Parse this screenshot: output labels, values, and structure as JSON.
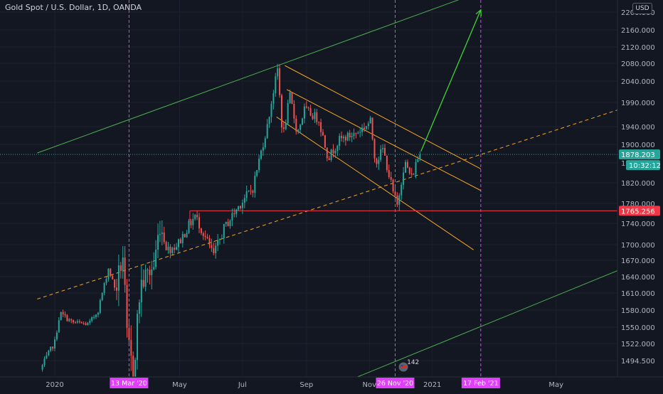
{
  "chart_title": "Gold Spot / U.S. Dollar, 1D, OANDA",
  "currency_label": "USD",
  "colors": {
    "background": "#131722",
    "up_candle": "#26a69a",
    "down_candle": "#ef5350",
    "green_channel": "#4caf50",
    "orange_channel": "#f5a623",
    "support_line": "#f23645",
    "event_line": "#e040fb",
    "arrow": "#3fd435",
    "axis_text": "#b2b5be"
  },
  "chart_data": {
    "type": "candlestick",
    "symbol": "XAUUSD",
    "timeframe": "1D",
    "y_axis_ticks": [
      2200,
      2160,
      2120,
      2080,
      2040,
      1990,
      1940,
      1900,
      1860,
      1820,
      1780,
      1740,
      1700,
      1670,
      1640,
      1610,
      1580,
      1550,
      1522,
      1494.5
    ],
    "y_axis_tick_labels": [
      "2200.000",
      "2160.000",
      "2120.000",
      "2080.000",
      "2040.000",
      "1990.000",
      "1940.000",
      "1900.000",
      "1860.000",
      "1820.000",
      "1780.000",
      "1740.000",
      "1700.000",
      "1670.000",
      "1640.000",
      "1610.000",
      "1580.000",
      "1550.000",
      "1522.000",
      "1494.500"
    ],
    "x_axis_labels": [
      "2020",
      "May",
      "Jul",
      "Sep",
      "Nov",
      "2021",
      "May"
    ],
    "price_badges": [
      {
        "label": "1878.203",
        "value": 1878.203,
        "color": "#26a69a"
      },
      {
        "label": "10:32:12",
        "color": "#26a69a"
      },
      {
        "label": "1765.256",
        "value": 1765.256,
        "color": "#f23645"
      }
    ],
    "date_markers": [
      {
        "label": "13 Mar '20",
        "date": "2020-03-13"
      },
      {
        "label": "26 Nov '20",
        "date": "2020-11-26"
      },
      {
        "label": "17 Feb '21",
        "date": "2021-02-17"
      }
    ],
    "support_level": 1765.256,
    "last_price": 1878.203,
    "event_badge": "142",
    "price_path": [
      [
        "2019-12-20",
        1480
      ],
      [
        "2020-01-03",
        1525
      ],
      [
        "2020-01-08",
        1575
      ],
      [
        "2020-01-20",
        1558
      ],
      [
        "2020-02-05",
        1555
      ],
      [
        "2020-02-14",
        1580
      ],
      [
        "2020-02-24",
        1655
      ],
      [
        "2020-03-02",
        1615
      ],
      [
        "2020-03-09",
        1680
      ],
      [
        "2020-03-13",
        1530
      ],
      [
        "2020-03-19",
        1472
      ],
      [
        "2020-03-26",
        1625
      ],
      [
        "2020-04-08",
        1660
      ],
      [
        "2020-04-14",
        1740
      ],
      [
        "2020-04-21",
        1690
      ],
      [
        "2020-05-01",
        1700
      ],
      [
        "2020-05-18",
        1755
      ],
      [
        "2020-06-05",
        1680
      ],
      [
        "2020-06-15",
        1730
      ],
      [
        "2020-07-01",
        1780
      ],
      [
        "2020-07-13",
        1810
      ],
      [
        "2020-07-27",
        1940
      ],
      [
        "2020-08-06",
        2067
      ],
      [
        "2020-08-11",
        1915
      ],
      [
        "2020-08-18",
        2005
      ],
      [
        "2020-08-25",
        1925
      ],
      [
        "2020-09-01",
        1975
      ],
      [
        "2020-09-15",
        1955
      ],
      [
        "2020-09-24",
        1870
      ],
      [
        "2020-10-05",
        1910
      ],
      [
        "2020-10-21",
        1925
      ],
      [
        "2020-11-04",
        1950
      ],
      [
        "2020-11-09",
        1860
      ],
      [
        "2020-11-16",
        1890
      ],
      [
        "2020-11-26",
        1800
      ],
      [
        "2020-11-30",
        1775
      ],
      [
        "2020-12-07",
        1862
      ],
      [
        "2020-12-14",
        1830
      ],
      [
        "2020-12-21",
        1878
      ]
    ]
  }
}
